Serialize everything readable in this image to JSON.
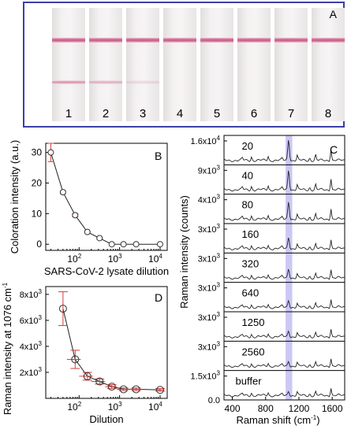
{
  "panel_a": {
    "label": "A",
    "strips": [
      {
        "number": "1",
        "test_line": 1.0
      },
      {
        "number": "2",
        "test_line": 0.7
      },
      {
        "number": "3",
        "test_line": 0.3
      },
      {
        "number": "4",
        "test_line": 0.0
      },
      {
        "number": "5",
        "test_line": 0.0
      },
      {
        "number": "6",
        "test_line": 0.0
      },
      {
        "number": "7",
        "test_line": 0.0
      },
      {
        "number": "8",
        "test_line": 0.0
      }
    ],
    "control_color": "#c6517f"
  },
  "chart_data": [
    {
      "panel": "B",
      "type": "scatter",
      "xscale": "log",
      "xlabel": "SARS-CoV-2 lysate dilution",
      "ylabel": "Coloration intensity (a.u.)",
      "xlim": [
        15,
        15000
      ],
      "ylim": [
        -2,
        33
      ],
      "yticks": [
        0,
        10,
        20,
        30
      ],
      "xticks": [
        {
          "v": 100,
          "label": "10",
          "sup": "2"
        },
        {
          "v": 1000,
          "label": "10",
          "sup": "3"
        },
        {
          "v": 10000,
          "label": "10",
          "sup": "4"
        }
      ],
      "x": [
        20,
        40,
        80,
        160,
        320,
        640,
        1250,
        2560,
        10000
      ],
      "y": [
        30,
        17,
        9.5,
        4,
        2,
        0,
        0,
        0,
        0
      ],
      "yerr": [
        3,
        0.5,
        0.5,
        0.3,
        0.3,
        0,
        0,
        0,
        0
      ],
      "marker_color": "#333333",
      "error_color": "#d43c3c"
    },
    {
      "panel": "D",
      "type": "scatter",
      "xscale": "log",
      "xlabel": "Dilution",
      "ylabel": "Raman intensity at 1076 cm",
      "ylabel_sup": "-1",
      "xlim": [
        15,
        15000
      ],
      "ylim": [
        0,
        8600
      ],
      "yticks": [
        {
          "v": 2000,
          "label": "2x10",
          "sup": "3"
        },
        {
          "v": 4000,
          "label": "4x10",
          "sup": "3"
        },
        {
          "v": 6000,
          "label": "6x10",
          "sup": "3"
        },
        {
          "v": 8000,
          "label": "8x10",
          "sup": "3"
        }
      ],
      "xticks": [
        {
          "v": 100,
          "label": "10",
          "sup": "2"
        },
        {
          "v": 1000,
          "label": "10",
          "sup": "3"
        },
        {
          "v": 10000,
          "label": "10",
          "sup": "4"
        }
      ],
      "x": [
        40,
        80,
        160,
        320,
        640,
        1250,
        2560,
        10000
      ],
      "y": [
        6900,
        3000,
        1700,
        1300,
        900,
        700,
        700,
        650
      ],
      "xerr": [
        0,
        30,
        60,
        120,
        200,
        400,
        800,
        2000
      ],
      "yerr": [
        1300,
        700,
        300,
        200,
        150,
        100,
        100,
        100
      ],
      "marker_color": "#333333",
      "error_color": "#d43c3c"
    },
    {
      "panel": "C",
      "type": "line",
      "xlabel": "Raman shift (cm",
      "xlabel_sup": "-1",
      "xlabel_end": ")",
      "ylabel": "Raman intensity (counts)",
      "xlim": [
        300,
        1750
      ],
      "xticks": [
        400,
        800,
        1200,
        1600
      ],
      "highlight": [
        1040,
        1120
      ],
      "highlight_color": "#b9b6f2",
      "peaks": [
        {
          "center": 520,
          "rel": 0.12
        },
        {
          "center": 630,
          "rel": 0.18
        },
        {
          "center": 830,
          "rel": 0.2
        },
        {
          "center": 1000,
          "rel": 0.1
        },
        {
          "center": 1076,
          "rel": 1.0
        },
        {
          "center": 1180,
          "rel": 0.22
        },
        {
          "center": 1330,
          "rel": 0.12
        },
        {
          "center": 1400,
          "rel": 0.25
        },
        {
          "center": 1585,
          "rel": 0.55
        }
      ],
      "series": [
        {
          "name": "20",
          "yaxis_label": "1.6x10",
          "yaxis_sup": "4",
          "peak_scale": 1.0
        },
        {
          "name": "40",
          "yaxis_label": "9x10",
          "yaxis_sup": "3",
          "peak_scale": 0.95
        },
        {
          "name": "80",
          "yaxis_label": "4x10",
          "yaxis_sup": "3",
          "peak_scale": 0.85
        },
        {
          "name": "160",
          "yaxis_label": "3x10",
          "yaxis_sup": "3",
          "peak_scale": 0.55
        },
        {
          "name": "320",
          "yaxis_label": "3x10",
          "yaxis_sup": "3",
          "peak_scale": 0.45
        },
        {
          "name": "640",
          "yaxis_label": "3x10",
          "yaxis_sup": "3",
          "peak_scale": 0.35
        },
        {
          "name": "1250",
          "yaxis_label": "3x10",
          "yaxis_sup": "3",
          "peak_scale": 0.3
        },
        {
          "name": "2560",
          "yaxis_label": "3x10",
          "yaxis_sup": "3",
          "peak_scale": 0.25
        },
        {
          "name": "buffer",
          "yaxis_label": "1.5x10",
          "yaxis_sup": "3",
          "peak_scale": 0.22
        }
      ],
      "bottom_tick": "0.0"
    }
  ]
}
